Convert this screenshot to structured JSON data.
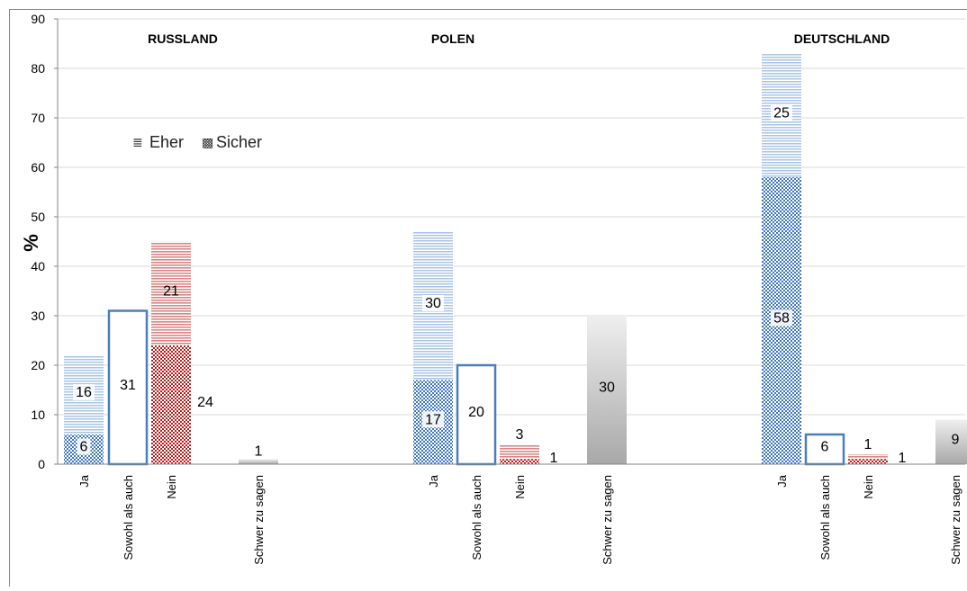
{
  "chart_data": {
    "type": "bar",
    "stacked": true,
    "ylabel": "%",
    "ylim": [
      0,
      90
    ],
    "yticks": [
      "0",
      "10",
      "20",
      "30",
      "40",
      "50",
      "60",
      "70",
      "80",
      "90"
    ],
    "grid": true,
    "legend": {
      "position": "top-left",
      "entries": [
        {
          "symbol": "≣",
          "label": "Eher"
        },
        {
          "symbol": "▩",
          "label": "Sicher"
        }
      ]
    },
    "colors": {
      "ja": "#4a7ebb",
      "sowohl": "#4a7ebb",
      "nein": "#c0504d",
      "schwer": "#a6a6a6",
      "grid": "#d9d9d9",
      "axis": "#868686"
    },
    "groups": [
      {
        "title": "RUSSLAND",
        "bars": [
          {
            "label": "Ja",
            "kind": "ja",
            "sicher": 6,
            "eher": 16
          },
          {
            "label": "Sowohl als auch",
            "kind": "sowohl",
            "value": 31
          },
          {
            "label": "Nein",
            "kind": "nein",
            "sicher": 24,
            "eher": 21
          },
          {
            "label": "Schwer zu sagen",
            "kind": "schwer",
            "value": 1
          }
        ]
      },
      {
        "title": "POLEN",
        "bars": [
          {
            "label": "Ja",
            "kind": "ja",
            "sicher": 17,
            "eher": 30
          },
          {
            "label": "Sowohl als auch",
            "kind": "sowohl",
            "value": 20
          },
          {
            "label": "Nein",
            "kind": "nein",
            "sicher": 1,
            "eher": 3
          },
          {
            "label": "Schwer zu sagen",
            "kind": "schwer",
            "value": 30
          }
        ]
      },
      {
        "title": "DEUTSCHLAND",
        "bars": [
          {
            "label": "Ja",
            "kind": "ja",
            "sicher": 58,
            "eher": 25
          },
          {
            "label": "Sowohl als auch",
            "kind": "sowohl",
            "value": 6
          },
          {
            "label": "Nein",
            "kind": "nein",
            "sicher": 1,
            "eher": 1
          },
          {
            "label": "Schwer zu sagen",
            "kind": "schwer",
            "value": 9
          }
        ]
      }
    ]
  }
}
